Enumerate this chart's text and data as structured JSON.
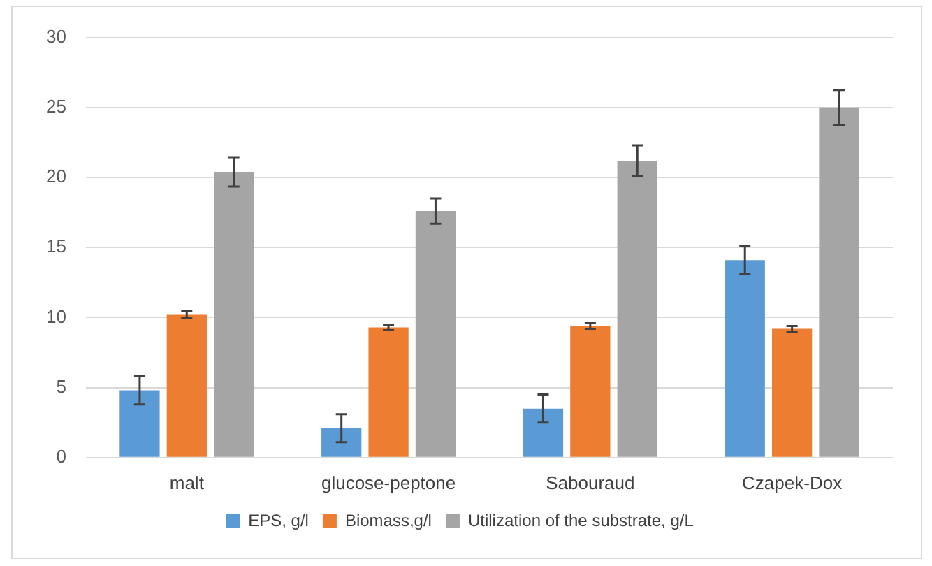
{
  "chart_data": {
    "type": "bar",
    "categories": [
      "malt",
      "glucose-peptone",
      "Sabouraud",
      "Czapek-Dox"
    ],
    "series": [
      {
        "name": "EPS, g/l",
        "color": "#5b9bd5",
        "values": [
          4.8,
          2.1,
          3.5,
          14.1
        ],
        "errors": [
          1.0,
          1.0,
          1.0,
          1.0
        ]
      },
      {
        "name": "Biomass,g/l",
        "color": "#ed7d31",
        "values": [
          10.2,
          9.3,
          9.4,
          9.2
        ],
        "errors": [
          0.25,
          0.2,
          0.2,
          0.2
        ]
      },
      {
        "name": "Utilization of the substrate, g/L",
        "color": "#a5a5a5",
        "values": [
          20.4,
          17.6,
          21.2,
          25.0
        ],
        "errors": [
          1.05,
          0.9,
          1.1,
          1.25
        ]
      }
    ],
    "ylim": [
      0,
      30
    ],
    "yticks": [
      0,
      5,
      10,
      15,
      20,
      25,
      30
    ],
    "grid": "y",
    "legend": "bottom"
  }
}
